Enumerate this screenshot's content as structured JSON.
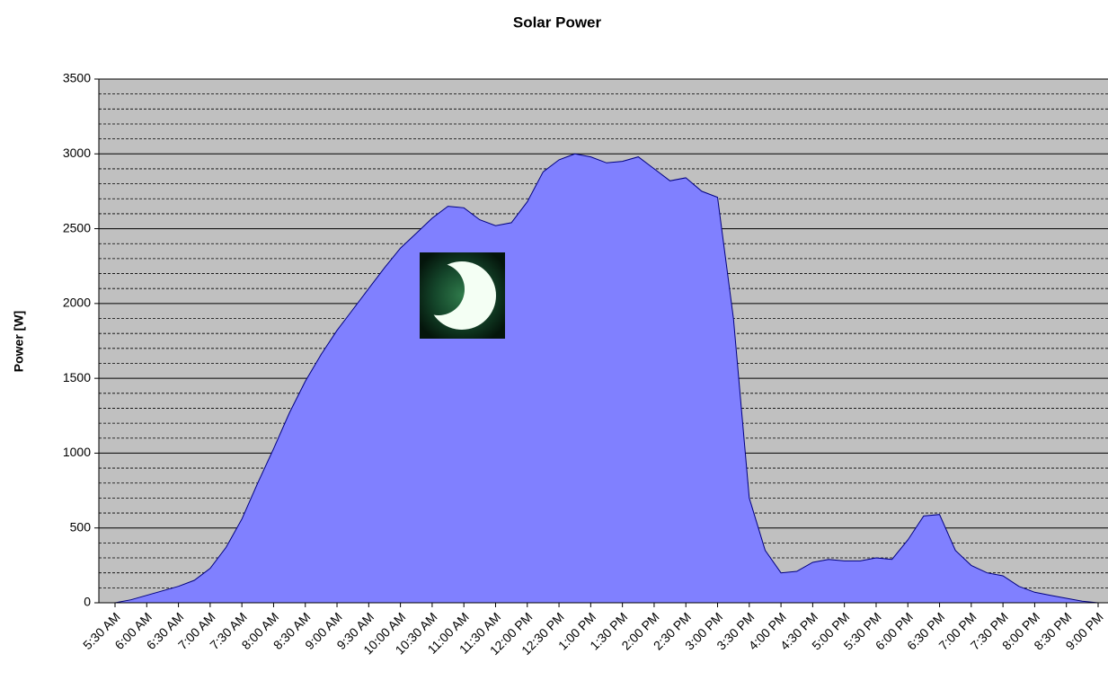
{
  "chart_data": {
    "type": "area",
    "title": "Solar Power",
    "y_label": "Power [W]",
    "categories": [
      "5:30 AM",
      null,
      "6:00 AM",
      null,
      "6:30 AM",
      null,
      "7:00 AM",
      null,
      "7:30 AM",
      null,
      "8:00 AM",
      null,
      "8:30 AM",
      null,
      "9:00 AM",
      null,
      "9:30 AM",
      null,
      "10:00 AM",
      null,
      "10:30 AM",
      null,
      "11:00 AM",
      null,
      "11:30 AM",
      null,
      "12:00 PM",
      null,
      "12:30 PM",
      null,
      "1:00 PM",
      null,
      "1:30 PM",
      null,
      "2:00 PM",
      null,
      "2:30 PM",
      null,
      "3:00 PM",
      null,
      "3:30 PM",
      null,
      "4:00 PM",
      null,
      "4:30 PM",
      null,
      "5:00 PM",
      null,
      "5:30 PM",
      null,
      "6:00 PM",
      null,
      "6:30 PM",
      null,
      "7:00 PM",
      null,
      "7:30 PM",
      null,
      "8:00 PM",
      null,
      "8:30 PM",
      null,
      "9:00 PM"
    ],
    "values": [
      0,
      20,
      50,
      80,
      110,
      150,
      230,
      370,
      560,
      800,
      1030,
      1270,
      1480,
      1660,
      1820,
      1960,
      2100,
      2240,
      2370,
      2470,
      2570,
      2650,
      2640,
      2560,
      2520,
      2540,
      2680,
      2880,
      2960,
      3000,
      2980,
      2940,
      2950,
      2980,
      2900,
      2820,
      2840,
      2750,
      2710,
      1900,
      700,
      350,
      200,
      210,
      270,
      290,
      280,
      280,
      300,
      290,
      420,
      580,
      590,
      350,
      250,
      200,
      180,
      110,
      70,
      50,
      30,
      10,
      0
    ],
    "color": "#8080ff",
    "background": "#c0c0c0",
    "ylim": [
      0,
      3500
    ],
    "yticks": [
      0,
      500,
      1000,
      1500,
      2000,
      2500,
      3000,
      3500
    ],
    "grid": true
  }
}
